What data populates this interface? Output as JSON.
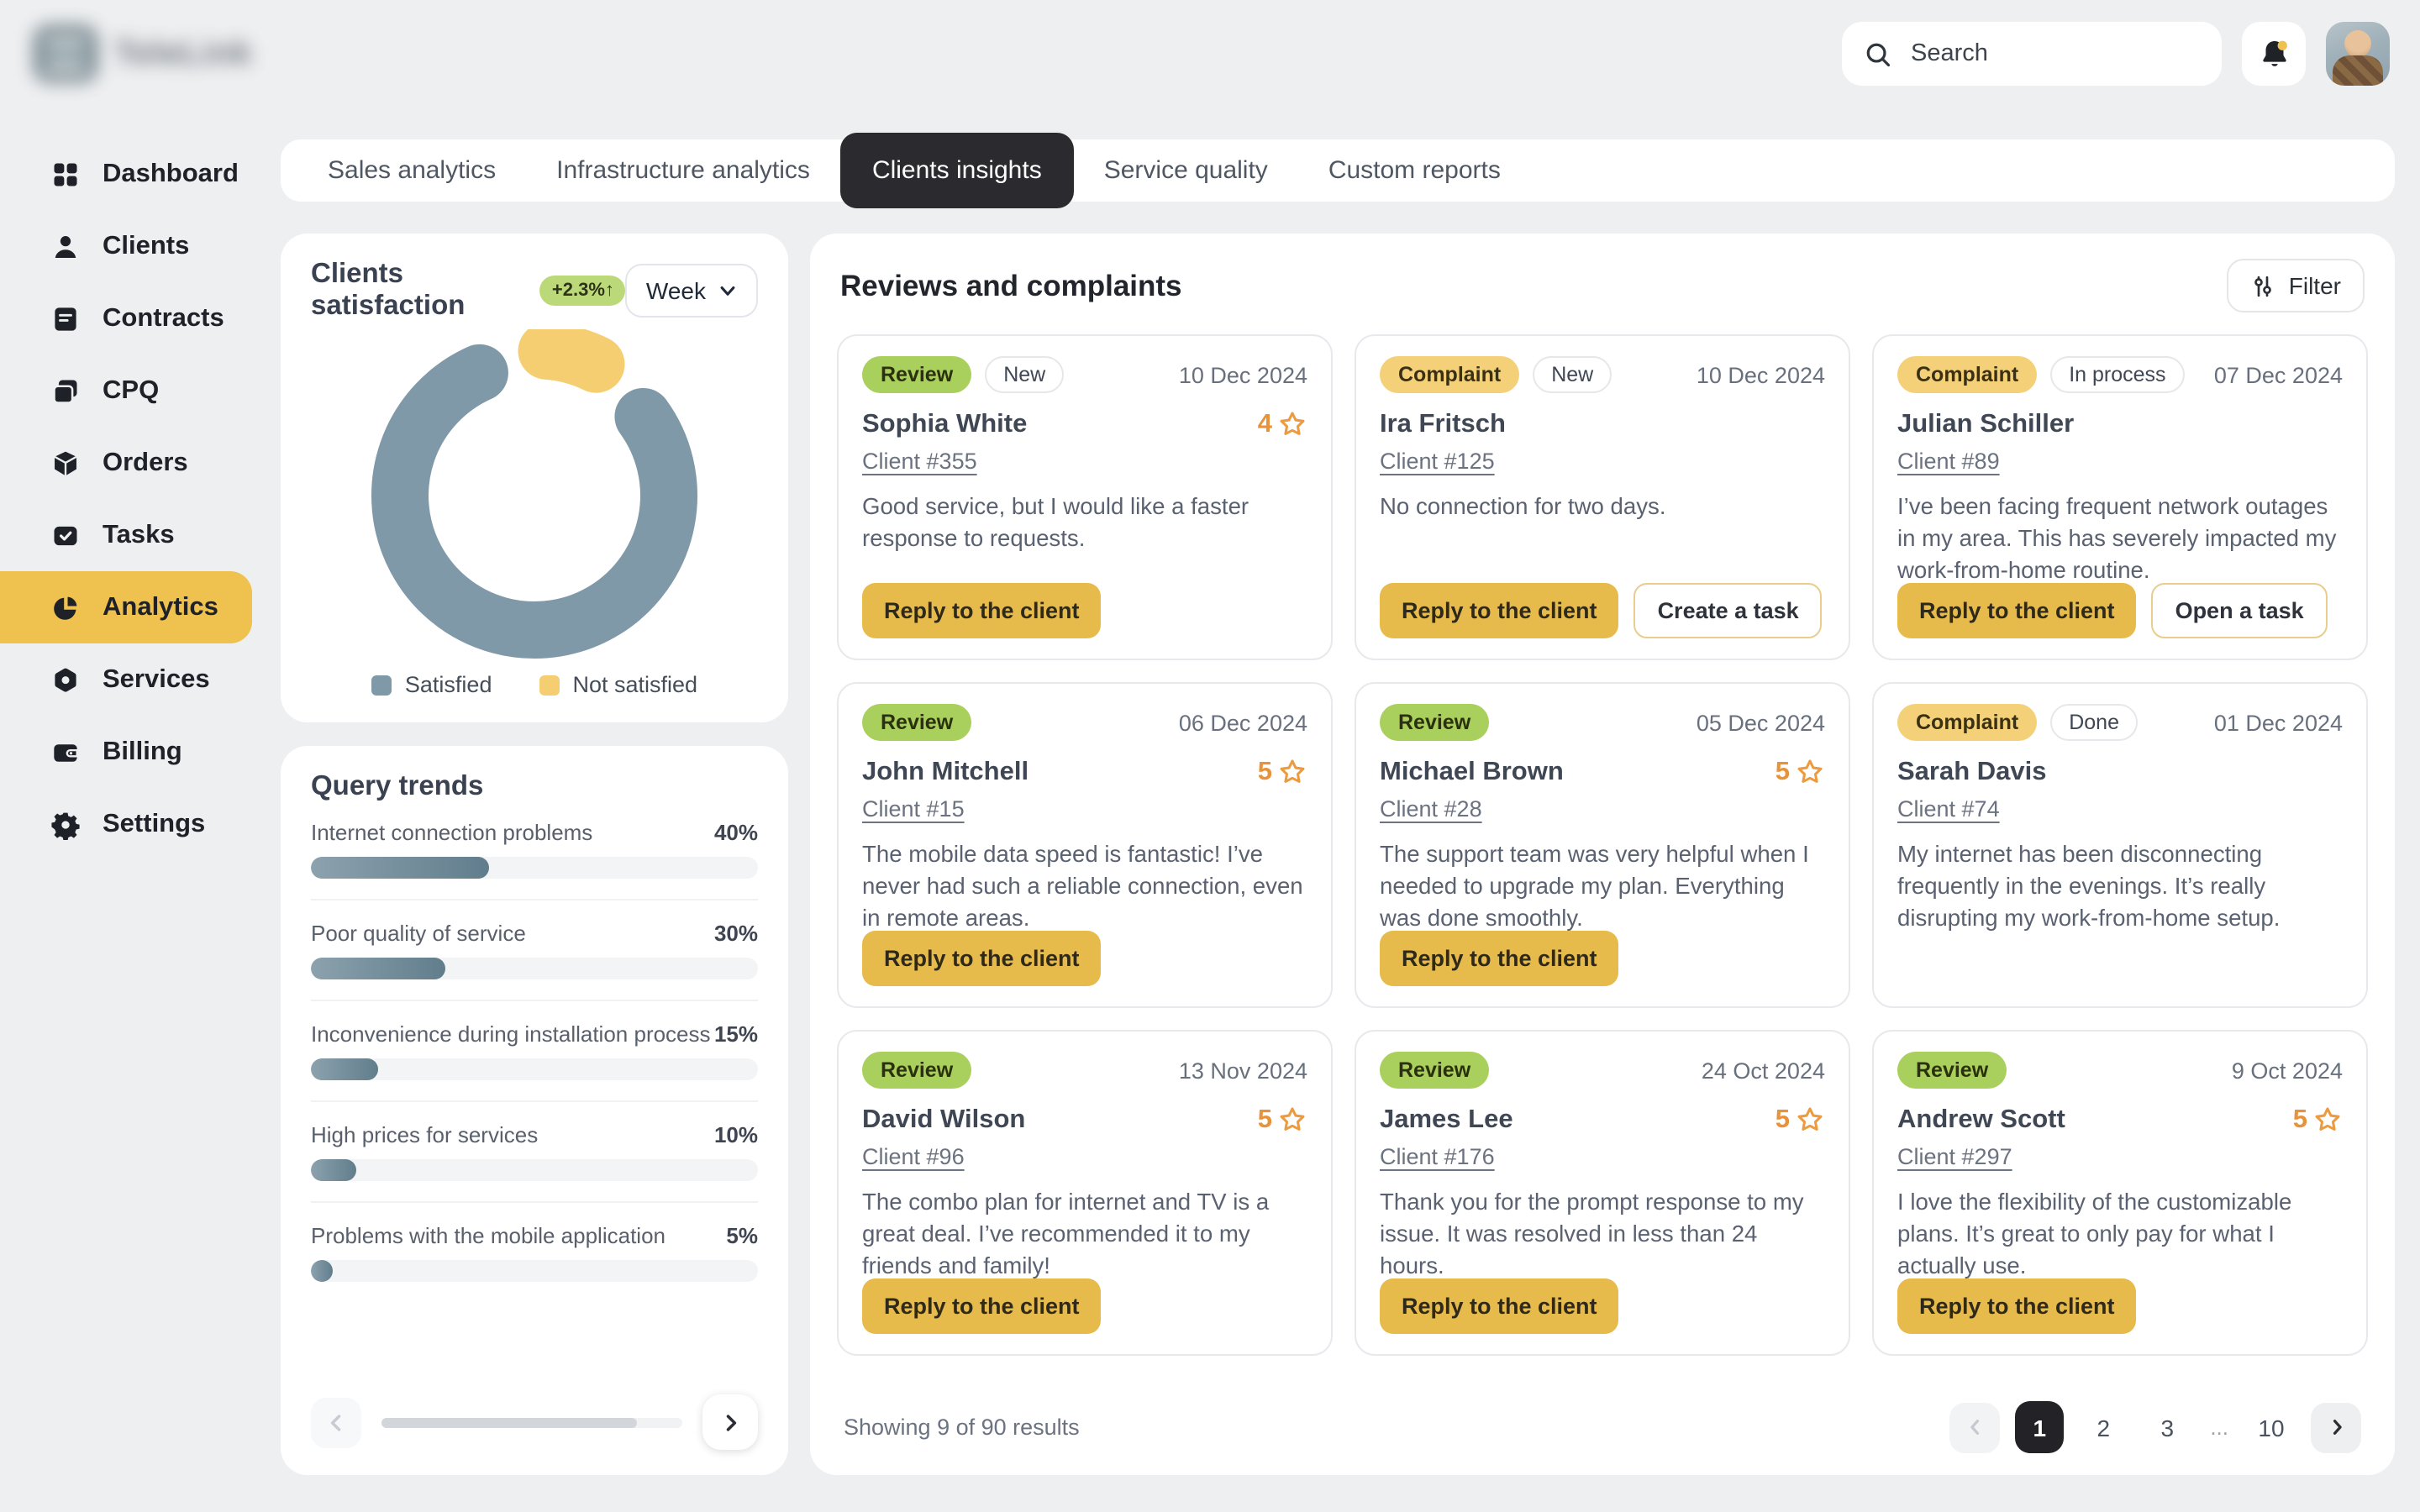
{
  "app": {
    "logo_text": "TeleLink"
  },
  "topbar": {
    "search_placeholder": "Search"
  },
  "colors": {
    "accent_yellow": "#E7BA4C",
    "active_nav_yellow": "#EFC14F",
    "review_badge_green": "#A9CF5D",
    "complaint_badge_yellow": "#F4D078",
    "delta_badge_green": "#BCD97A",
    "rating_orange": "#E8923A",
    "satisfied_slate": "#8099A8",
    "not_satisfied_yellow": "#F5CE72"
  },
  "sidebar": {
    "items": [
      {
        "label": "Dashboard",
        "icon": "dashboard-icon",
        "active": false
      },
      {
        "label": "Clients",
        "icon": "user-icon",
        "active": false
      },
      {
        "label": "Contracts",
        "icon": "contract-icon",
        "active": false
      },
      {
        "label": "CPQ",
        "icon": "cpq-icon",
        "active": false
      },
      {
        "label": "Orders",
        "icon": "orders-box-icon",
        "active": false
      },
      {
        "label": "Tasks",
        "icon": "tasks-check-icon",
        "active": false
      },
      {
        "label": "Analytics",
        "icon": "analytics-pie-icon",
        "active": true
      },
      {
        "label": "Services",
        "icon": "services-nut-icon",
        "active": false
      },
      {
        "label": "Billing",
        "icon": "billing-wallet-icon",
        "active": false
      },
      {
        "label": "Settings",
        "icon": "settings-gear-icon",
        "active": false
      }
    ]
  },
  "tabs": [
    {
      "label": "Sales analytics",
      "active": false
    },
    {
      "label": "Infrastructure analytics",
      "active": false
    },
    {
      "label": "Clients insights",
      "active": true
    },
    {
      "label": "Service quality",
      "active": false
    },
    {
      "label": "Custom reports",
      "active": false
    }
  ],
  "satisfaction": {
    "title": "Clients satisfaction",
    "delta_badge": "+2.3%↑",
    "period_selector": "Week"
  },
  "query_trends": {
    "title": "Query trends"
  },
  "reviews": {
    "title": "Reviews and complaints",
    "filter_label": "Filter",
    "cards": [
      {
        "type_badge": "Review",
        "status_badge": "New",
        "date": "10 Dec 2024",
        "name": "Sophia White",
        "rating": "4",
        "client": "Client #355",
        "text": "Good service, but I would like a faster response to requests.",
        "buttons": [
          {
            "label": "Reply to the client",
            "style": "primary"
          }
        ]
      },
      {
        "type_badge": "Complaint",
        "status_badge": "New",
        "date": "10 Dec 2024",
        "name": "Ira Fritsch",
        "rating": null,
        "client": "Client #125",
        "text": "No connection for two days.",
        "buttons": [
          {
            "label": "Reply to the client",
            "style": "primary"
          },
          {
            "label": "Create a task",
            "style": "secondary"
          }
        ]
      },
      {
        "type_badge": "Complaint",
        "status_badge": "In process",
        "date": "07 Dec 2024",
        "name": "Julian Schiller",
        "rating": null,
        "client": "Client #89",
        "text": "I’ve been facing frequent network outages in my area. This has severely impacted my work-from-home routine.",
        "buttons": [
          {
            "label": "Reply to the client",
            "style": "primary"
          },
          {
            "label": "Open a task",
            "style": "secondary"
          }
        ]
      },
      {
        "type_badge": "Review",
        "status_badge": null,
        "date": "06 Dec 2024",
        "name": "John Mitchell",
        "rating": "5",
        "client": "Client #15",
        "text": "The mobile data speed is fantastic! I’ve never had such a reliable connection, even in remote areas.",
        "buttons": [
          {
            "label": "Reply to the client",
            "style": "primary"
          }
        ]
      },
      {
        "type_badge": "Review",
        "status_badge": null,
        "date": "05 Dec 2024",
        "name": "Michael Brown",
        "rating": "5",
        "client": "Client #28",
        "text": "The support team was very helpful when I needed to upgrade my plan. Everything was done smoothly.",
        "buttons": [
          {
            "label": "Reply to the client",
            "style": "primary"
          }
        ]
      },
      {
        "type_badge": "Complaint",
        "status_badge": "Done",
        "date": "01 Dec 2024",
        "name": "Sarah Davis",
        "rating": null,
        "client": "Client #74",
        "text": "My internet has been disconnecting frequently in the evenings. It’s really disrupting my work-from-home setup.",
        "buttons": []
      },
      {
        "type_badge": "Review",
        "status_badge": null,
        "date": "13 Nov 2024",
        "name": "David Wilson",
        "rating": "5",
        "client": "Client #96",
        "text": "The combo plan for internet and TV is a great deal. I’ve recommended it to my friends and family!",
        "buttons": [
          {
            "label": "Reply to the client",
            "style": "primary"
          }
        ]
      },
      {
        "type_badge": "Review",
        "status_badge": null,
        "date": "24 Oct 2024",
        "name": "James Lee",
        "rating": "5",
        "client": "Client #176",
        "text": "Thank you for the prompt response to my issue. It was resolved in less than 24 hours.",
        "buttons": [
          {
            "label": "Reply to the client",
            "style": "primary"
          }
        ]
      },
      {
        "type_badge": "Review",
        "status_badge": null,
        "date": "9 Oct 2024",
        "name": "Andrew Scott",
        "rating": "5",
        "client": "Client #297",
        "text": "I love the flexibility of the customizable plans. It’s great to only pay for what I actually use.",
        "buttons": [
          {
            "label": "Reply to the client",
            "style": "primary"
          }
        ]
      }
    ],
    "pagination": {
      "summary": "Showing 9 of 90 results",
      "pages": [
        "1",
        "2",
        "3",
        "...",
        "10"
      ],
      "active_page": "1"
    }
  },
  "chart_data": [
    {
      "type": "pie",
      "donut": true,
      "title": "Clients satisfaction",
      "labels": [
        "Satisfied",
        "Not satisfied"
      ],
      "values": [
        88,
        12
      ],
      "colors": [
        "#8099A8",
        "#F5CE72"
      ],
      "delta": "+2.3%↑",
      "period": "Week",
      "legend_position": "bottom"
    },
    {
      "type": "bar",
      "orientation": "horizontal",
      "title": "Query trends",
      "categories": [
        "Internet connection problems",
        "Poor quality of service",
        "Inconvenience during installation process",
        "High prices for services",
        "Problems with the mobile application"
      ],
      "values": [
        40,
        30,
        15,
        10,
        5
      ],
      "unit": "%",
      "xlim": [
        0,
        100
      ],
      "scroll_position_pct": 85
    }
  ]
}
